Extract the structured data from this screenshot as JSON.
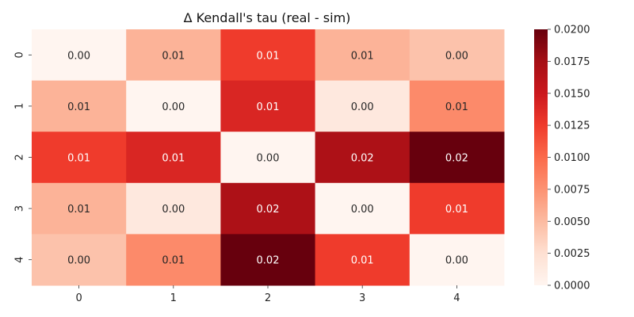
{
  "chart_data": {
    "type": "heatmap",
    "title": "Δ Kendall's tau (real - sim)",
    "x_categories": [
      "0",
      "1",
      "2",
      "3",
      "4"
    ],
    "y_categories": [
      "0",
      "1",
      "2",
      "3",
      "4"
    ],
    "values": [
      [
        0.0,
        0.0055,
        0.0125,
        0.0055,
        0.0045
      ],
      [
        0.0055,
        0.0,
        0.014,
        0.0015,
        0.008
      ],
      [
        0.0125,
        0.014,
        0.0,
        0.017,
        0.02
      ],
      [
        0.0055,
        0.0015,
        0.017,
        0.0,
        0.0125
      ],
      [
        0.0045,
        0.008,
        0.02,
        0.0125,
        0.0
      ]
    ],
    "cell_labels": [
      [
        "0.00",
        "0.01",
        "0.01",
        "0.01",
        "0.00"
      ],
      [
        "0.01",
        "0.00",
        "0.01",
        "0.00",
        "0.01"
      ],
      [
        "0.01",
        "0.01",
        "0.00",
        "0.02",
        "0.02"
      ],
      [
        "0.01",
        "0.00",
        "0.02",
        "0.00",
        "0.01"
      ],
      [
        "0.00",
        "0.01",
        "0.02",
        "0.01",
        "0.00"
      ]
    ],
    "colorbar": {
      "min": 0.0,
      "max": 0.02,
      "ticks": [
        "0.0000",
        "0.0025",
        "0.0050",
        "0.0075",
        "0.0100",
        "0.0125",
        "0.0150",
        "0.0175",
        "0.0200"
      ]
    },
    "colormap": "Reds",
    "colormap_stops": [
      "#fff5f0",
      "#fee0d2",
      "#fcbba1",
      "#fc9272",
      "#fb6a4a",
      "#ef3b2c",
      "#cb181d",
      "#a50f15",
      "#67000d"
    ]
  }
}
